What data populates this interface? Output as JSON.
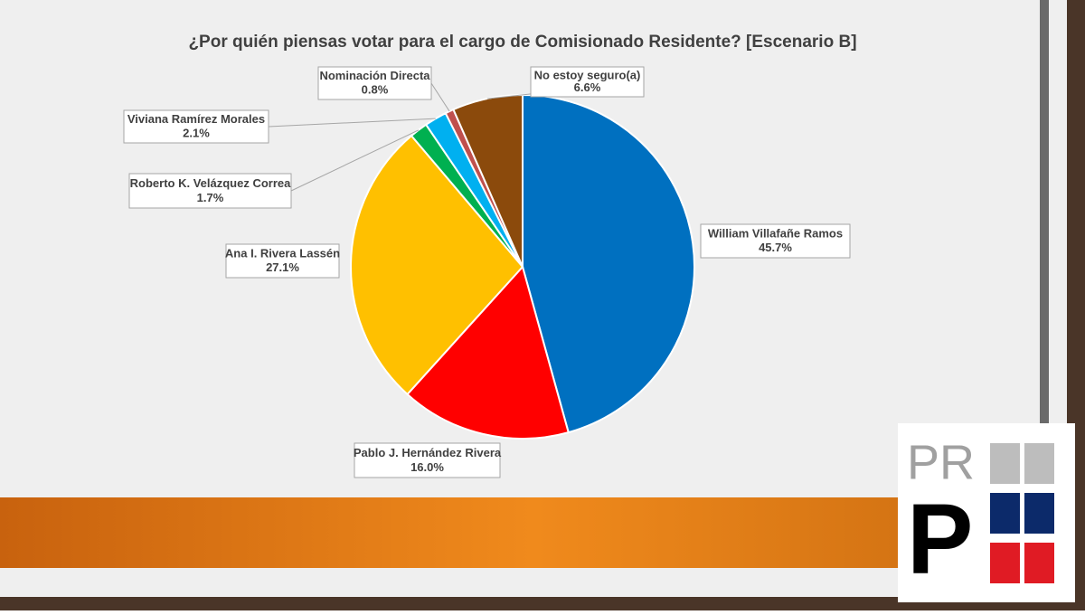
{
  "chart_data": {
    "type": "pie",
    "title": "¿Por quién piensas votar para el cargo de Comisionado Residente? [Escenario B]",
    "categories": [
      "William  Villafañe  Ramos",
      "Pablo J. Hernández Rivera",
      "Ana I. Rivera Lassén",
      "Roberto K. Velázquez  Correa",
      "Viviana  Ramírez Morales",
      "Nominación  Directa",
      "No estoy seguro(a)"
    ],
    "values": [
      45.7,
      16.0,
      27.1,
      1.7,
      2.1,
      0.8,
      6.6
    ],
    "value_labels": [
      "45.7%",
      "16.0%",
      "27.1%",
      "1.7%",
      "2.1%",
      "0.8%",
      "6.6%"
    ],
    "colors": [
      "#0070c0",
      "#ff0000",
      "#ffc000",
      "#00b050",
      "#00b0f0",
      "#c0504d",
      "#8b4a0c"
    ]
  },
  "logo": {
    "top": "PR",
    "bottom": "P"
  }
}
